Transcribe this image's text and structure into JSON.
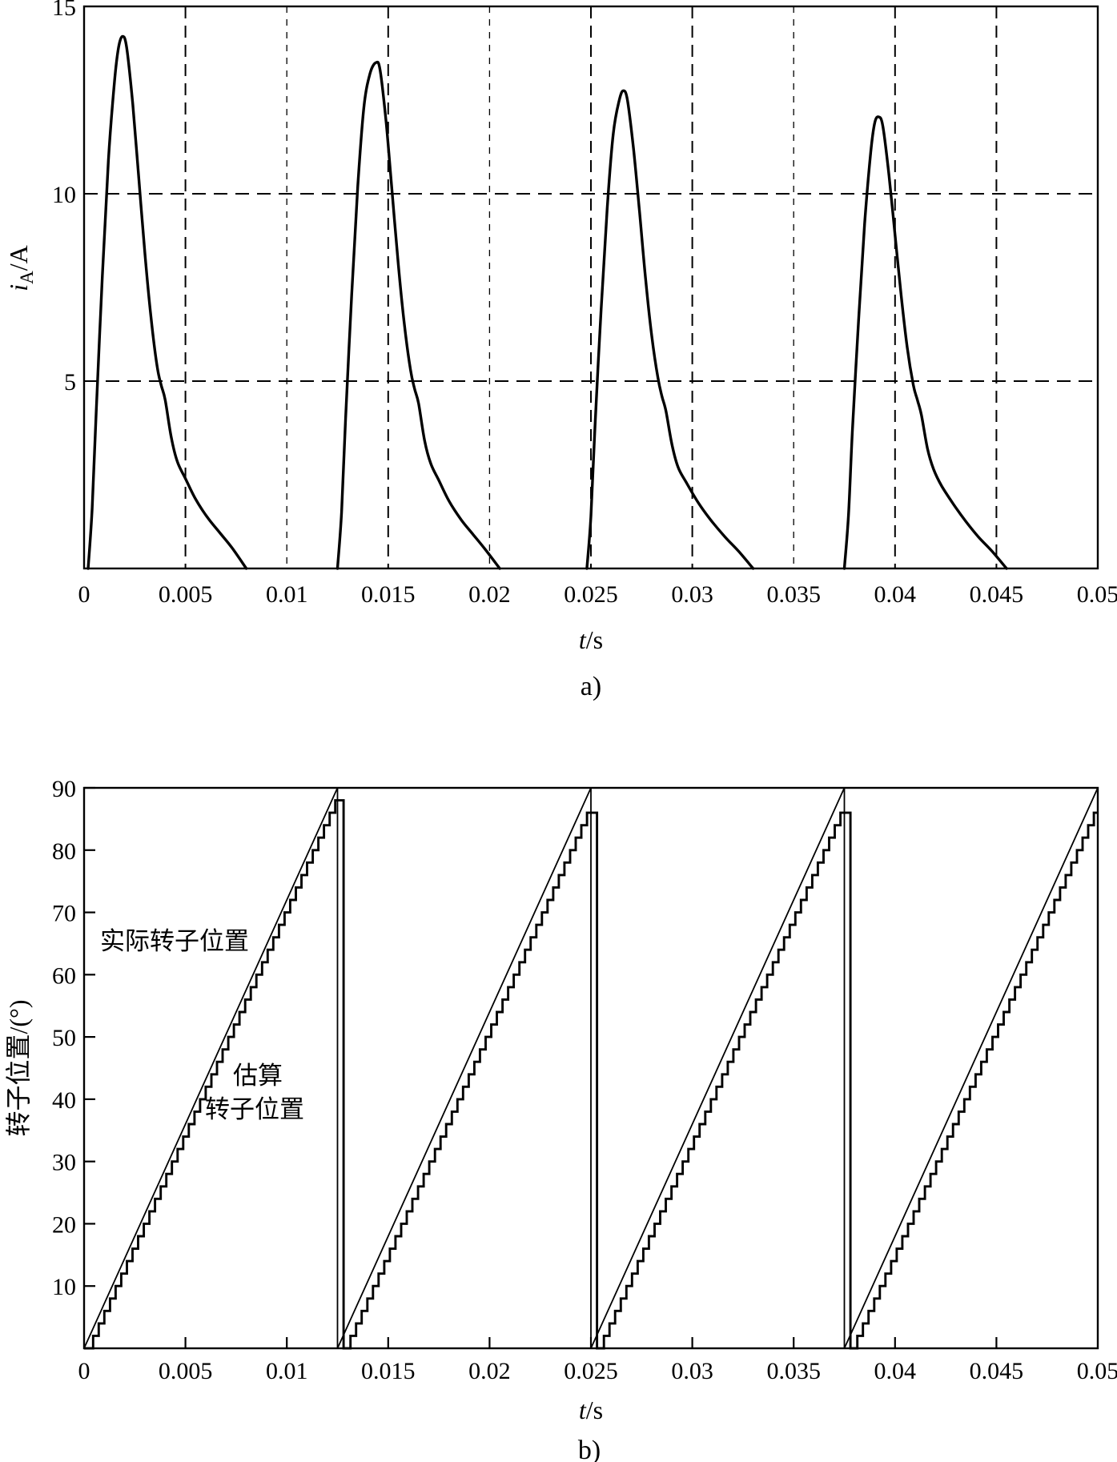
{
  "page": {
    "background": "#ffffff",
    "line_color": "#000000"
  },
  "chart_data": [
    {
      "id": "chart_a",
      "type": "line",
      "caption": "a)",
      "xlabel": {
        "var": "t",
        "unit": "/s"
      },
      "ylabel": {
        "var": "i",
        "sub": "A",
        "unit": "/A"
      },
      "xlim": [
        0,
        0.05
      ],
      "ylim": [
        0,
        15
      ],
      "grid": "dashed",
      "x_ticks": [
        {
          "v": 0,
          "label": "0"
        },
        {
          "v": 0.005,
          "label": "0.005"
        },
        {
          "v": 0.01,
          "label": "0.01"
        },
        {
          "v": 0.015,
          "label": "0.015"
        },
        {
          "v": 0.02,
          "label": "0.02"
        },
        {
          "v": 0.025,
          "label": "0.025"
        },
        {
          "v": 0.03,
          "label": "0.03"
        },
        {
          "v": 0.035,
          "label": "0.035"
        },
        {
          "v": 0.04,
          "label": "0.04"
        },
        {
          "v": 0.045,
          "label": "0.045"
        },
        {
          "v": 0.05,
          "label": "0.05"
        }
      ],
      "y_ticks": [
        {
          "v": 5,
          "label": "5"
        },
        {
          "v": 10,
          "label": "10"
        },
        {
          "v": 15,
          "label": "15"
        }
      ],
      "y_gridlines": [
        5,
        10
      ],
      "x_gridlines_long": [
        0.005,
        0.015,
        0.025,
        0.03,
        0.04,
        0.045
      ],
      "x_gridlines_short": [
        0.01,
        0.02,
        0.035
      ],
      "pulse_peaks_A": [
        14.2,
        13.5,
        12.75,
        12.05
      ],
      "pulses": [
        [
          [
            0.0002,
            0
          ],
          [
            0.0004,
            1.6
          ],
          [
            0.0006,
            4.2
          ],
          [
            0.0009,
            7.8
          ],
          [
            0.0012,
            10.9
          ],
          [
            0.0015,
            13.0
          ],
          [
            0.0017,
            13.9
          ],
          [
            0.0019,
            14.2
          ],
          [
            0.0021,
            13.9
          ],
          [
            0.0024,
            12.4
          ],
          [
            0.0027,
            10.4
          ],
          [
            0.003,
            8.4
          ],
          [
            0.0033,
            6.7
          ],
          [
            0.0036,
            5.4
          ],
          [
            0.0038,
            4.9
          ],
          [
            0.004,
            4.5
          ],
          [
            0.0043,
            3.5
          ],
          [
            0.0046,
            2.85
          ],
          [
            0.005,
            2.4
          ],
          [
            0.0055,
            1.85
          ],
          [
            0.0061,
            1.35
          ],
          [
            0.0067,
            0.95
          ],
          [
            0.0073,
            0.55
          ],
          [
            0.008,
            0
          ]
        ],
        [
          [
            0.0125,
            0
          ],
          [
            0.0127,
            1.5
          ],
          [
            0.0129,
            4.0
          ],
          [
            0.0132,
            7.3
          ],
          [
            0.0135,
            10.2
          ],
          [
            0.0138,
            12.3
          ],
          [
            0.0141,
            13.2
          ],
          [
            0.0144,
            13.5
          ],
          [
            0.0146,
            13.3
          ],
          [
            0.0149,
            11.9
          ],
          [
            0.0152,
            10.0
          ],
          [
            0.0155,
            8.1
          ],
          [
            0.0158,
            6.5
          ],
          [
            0.0161,
            5.3
          ],
          [
            0.0163,
            4.8
          ],
          [
            0.0165,
            4.4
          ],
          [
            0.0168,
            3.4
          ],
          [
            0.0171,
            2.8
          ],
          [
            0.0175,
            2.35
          ],
          [
            0.018,
            1.8
          ],
          [
            0.0186,
            1.3
          ],
          [
            0.0192,
            0.9
          ],
          [
            0.0198,
            0.5
          ],
          [
            0.0205,
            0
          ]
        ],
        [
          [
            0.0248,
            0
          ],
          [
            0.025,
            1.4
          ],
          [
            0.0252,
            3.8
          ],
          [
            0.0255,
            6.9
          ],
          [
            0.0258,
            9.6
          ],
          [
            0.0261,
            11.6
          ],
          [
            0.0264,
            12.5
          ],
          [
            0.0266,
            12.75
          ],
          [
            0.0268,
            12.5
          ],
          [
            0.0271,
            11.2
          ],
          [
            0.0274,
            9.5
          ],
          [
            0.0277,
            7.7
          ],
          [
            0.028,
            6.2
          ],
          [
            0.0283,
            5.1
          ],
          [
            0.0285,
            4.6
          ],
          [
            0.0287,
            4.2
          ],
          [
            0.029,
            3.3
          ],
          [
            0.0293,
            2.7
          ],
          [
            0.0297,
            2.3
          ],
          [
            0.0303,
            1.75
          ],
          [
            0.0309,
            1.3
          ],
          [
            0.0316,
            0.85
          ],
          [
            0.0323,
            0.45
          ],
          [
            0.033,
            0
          ]
        ],
        [
          [
            0.0375,
            0
          ],
          [
            0.0377,
            1.4
          ],
          [
            0.0379,
            3.7
          ],
          [
            0.0382,
            6.6
          ],
          [
            0.0385,
            9.2
          ],
          [
            0.0388,
            11.1
          ],
          [
            0.039,
            11.9
          ],
          [
            0.0392,
            12.05
          ],
          [
            0.0394,
            11.8
          ],
          [
            0.0397,
            10.5
          ],
          [
            0.04,
            8.9
          ],
          [
            0.0403,
            7.3
          ],
          [
            0.0406,
            5.9
          ],
          [
            0.0409,
            4.9
          ],
          [
            0.0411,
            4.5
          ],
          [
            0.0413,
            4.1
          ],
          [
            0.0416,
            3.2
          ],
          [
            0.0419,
            2.65
          ],
          [
            0.0423,
            2.2
          ],
          [
            0.0429,
            1.7
          ],
          [
            0.0435,
            1.25
          ],
          [
            0.0441,
            0.85
          ],
          [
            0.0448,
            0.45
          ],
          [
            0.0455,
            0
          ]
        ]
      ]
    },
    {
      "id": "chart_b",
      "type": "line",
      "caption": "b)",
      "xlabel": {
        "var": "t",
        "unit": "/s"
      },
      "ylabel": "转子位置/(°)",
      "xlim": [
        0,
        0.05
      ],
      "ylim": [
        0,
        90
      ],
      "grid": "off",
      "x_ticks": [
        {
          "v": 0,
          "label": "0"
        },
        {
          "v": 0.005,
          "label": "0.005"
        },
        {
          "v": 0.01,
          "label": "0.01"
        },
        {
          "v": 0.015,
          "label": "0.015"
        },
        {
          "v": 0.02,
          "label": "0.02"
        },
        {
          "v": 0.025,
          "label": "0.025"
        },
        {
          "v": 0.03,
          "label": "0.03"
        },
        {
          "v": 0.035,
          "label": "0.035"
        },
        {
          "v": 0.04,
          "label": "0.04"
        },
        {
          "v": 0.045,
          "label": "0.045"
        },
        {
          "v": 0.05,
          "label": "0.05"
        }
      ],
      "y_ticks": [
        {
          "v": 10,
          "label": "10"
        },
        {
          "v": 20,
          "label": "20"
        },
        {
          "v": 30,
          "label": "30"
        },
        {
          "v": 40,
          "label": "40"
        },
        {
          "v": 50,
          "label": "50"
        },
        {
          "v": 60,
          "label": "60"
        },
        {
          "v": 70,
          "label": "70"
        },
        {
          "v": 80,
          "label": "80"
        },
        {
          "v": 90,
          "label": "90"
        }
      ],
      "annotations": {
        "actual": "实际转子位置",
        "estimated_line1": "估算",
        "estimated_line2": "转子位置"
      },
      "series": [
        {
          "name": "实际转子位置",
          "style": "smooth-sawtooth",
          "period_s": 0.0125,
          "teeth": 4,
          "v_min": 0,
          "v_max": 90
        },
        {
          "name": "估算转子位置",
          "style": "stepped-sawtooth",
          "period_s": 0.0125,
          "step_deg": 2,
          "lag_deg": [
            1.2,
            2.6,
            2.6,
            2.6
          ],
          "top_deg": 88,
          "drop_offset_s": 0.0003
        }
      ]
    }
  ]
}
